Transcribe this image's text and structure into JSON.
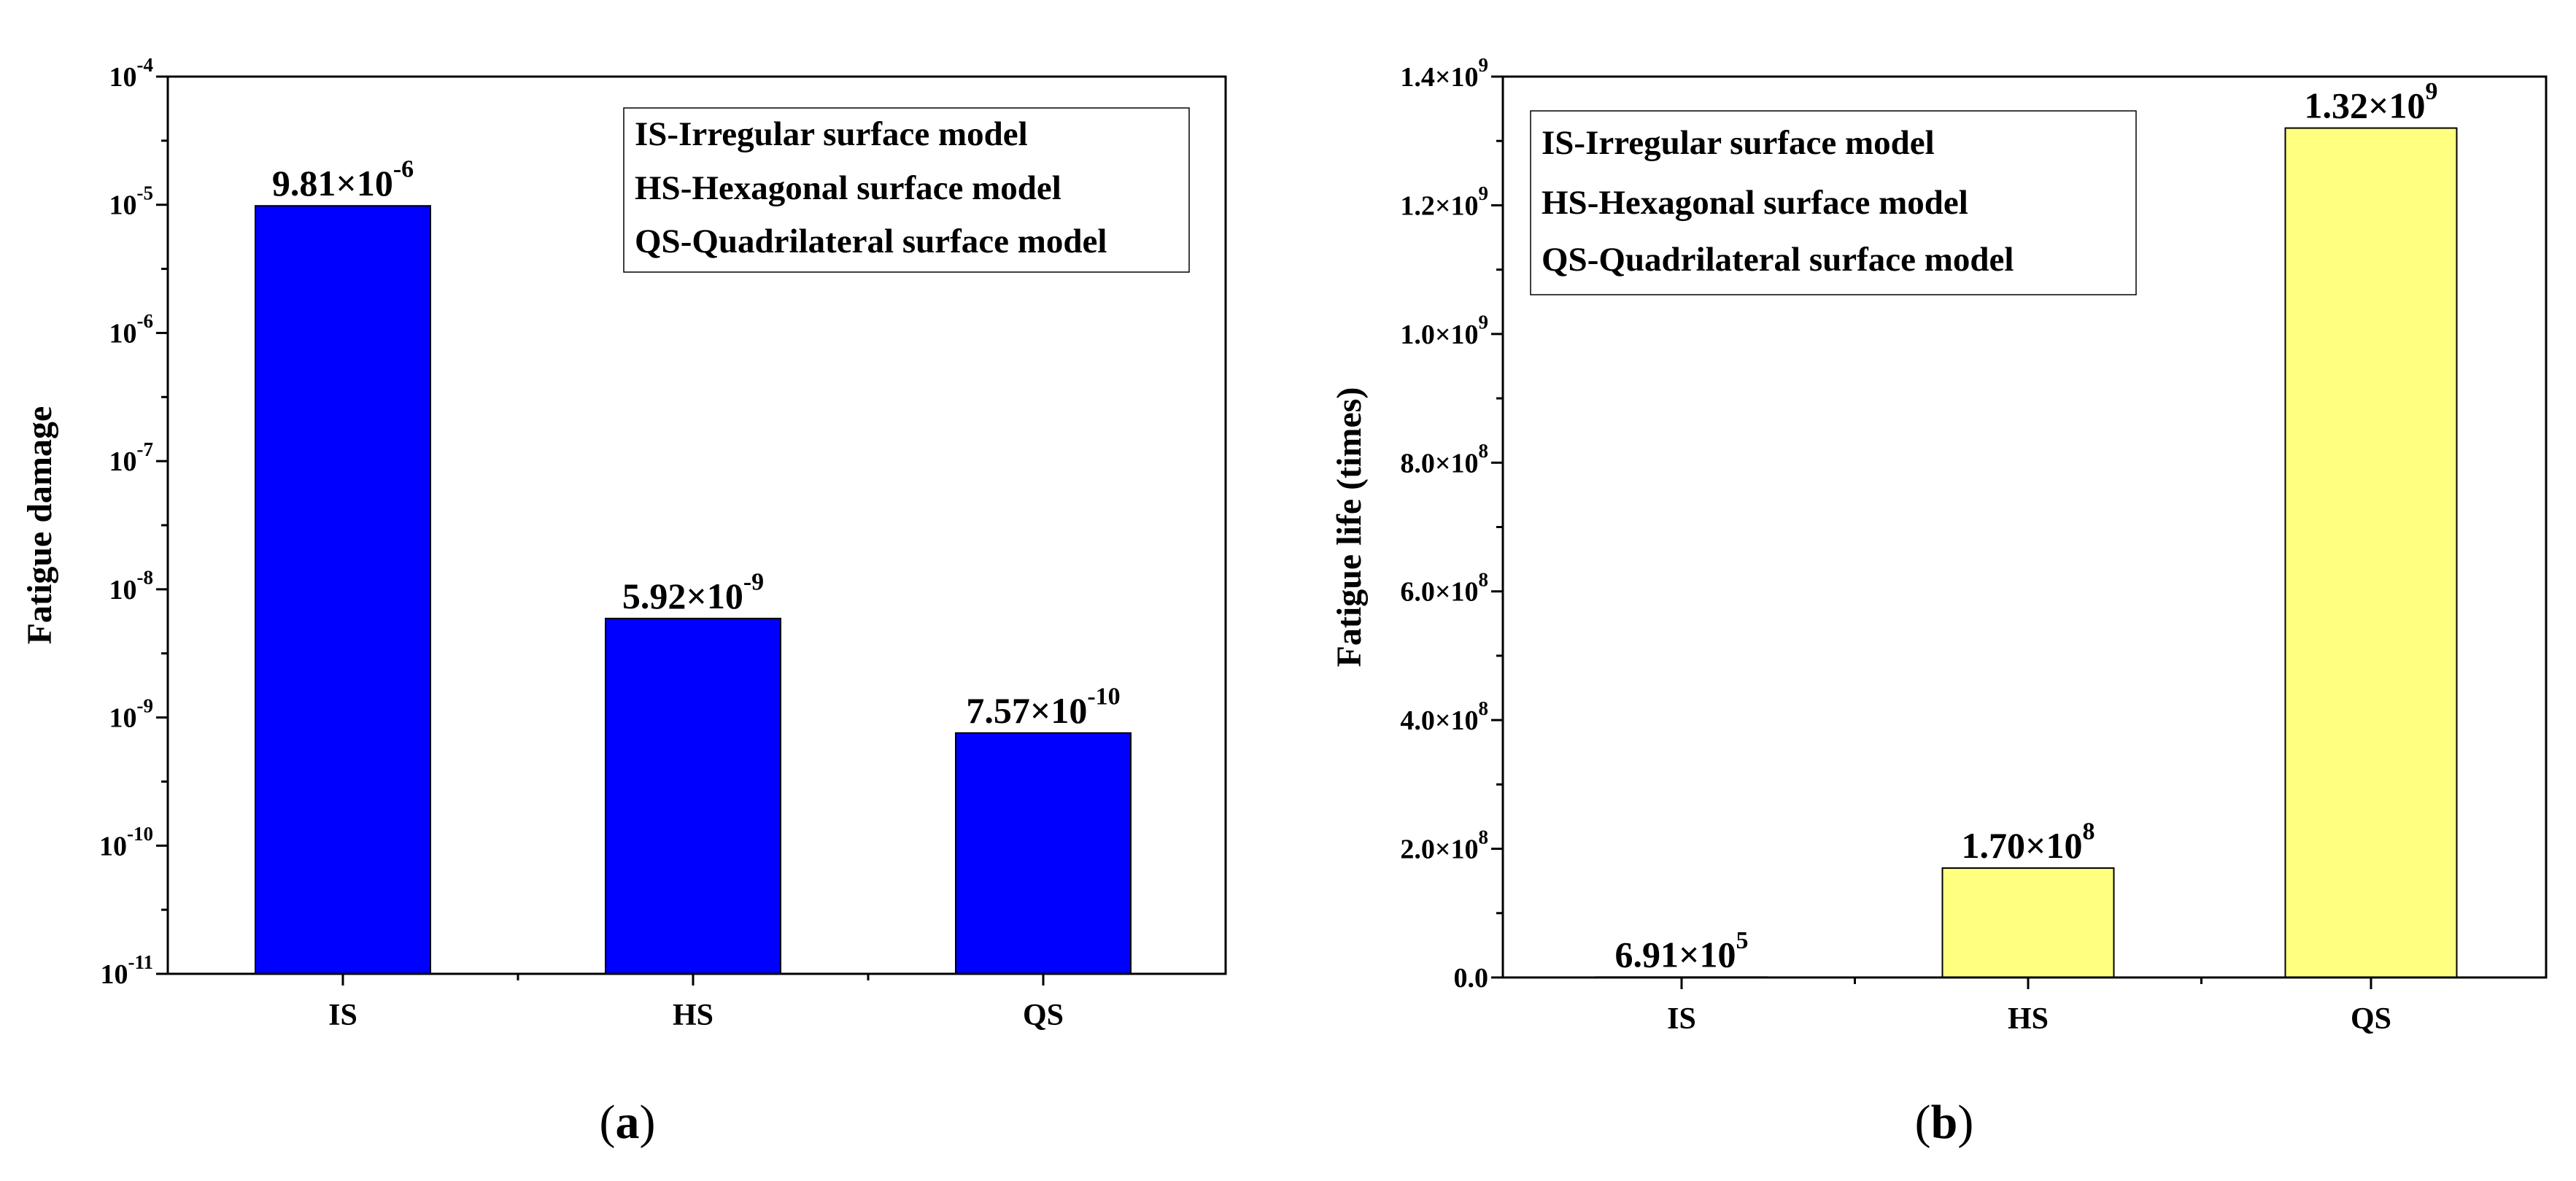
{
  "chart_data": [
    {
      "type": "bar",
      "panel_label": "a",
      "ylabel": "Fatigue damage",
      "yscale": "log",
      "ylim": [
        1e-11,
        0.0001
      ],
      "categories": [
        "IS",
        "HS",
        "QS"
      ],
      "values": [
        9.81e-06,
        5.92e-09,
        7.57e-10
      ],
      "data_labels": [
        {
          "mantissa": "9.81×10",
          "exponent": "-6"
        },
        {
          "mantissa": "5.92×10",
          "exponent": "-9"
        },
        {
          "mantissa": "7.57×10",
          "exponent": "-10"
        }
      ],
      "y_ticks": [
        {
          "value": 1e-11,
          "base": "10",
          "exp": "-11"
        },
        {
          "value": 1e-10,
          "base": "10",
          "exp": "-10"
        },
        {
          "value": 1e-09,
          "base": "10",
          "exp": "-9"
        },
        {
          "value": 1e-08,
          "base": "10",
          "exp": "-8"
        },
        {
          "value": 1e-07,
          "base": "10",
          "exp": "-7"
        },
        {
          "value": 1e-06,
          "base": "10",
          "exp": "-6"
        },
        {
          "value": 1e-05,
          "base": "10",
          "exp": "-5"
        },
        {
          "value": 0.0001,
          "base": "10",
          "exp": "-4"
        }
      ],
      "bar_color": "#0000ff",
      "legend": {
        "placement": "top-right",
        "entries": [
          "IS-Irregular surface model",
          "HS-Hexagonal surface model",
          "QS-Quadrilateral surface model"
        ]
      },
      "grid": false
    },
    {
      "type": "bar",
      "panel_label": "b",
      "ylabel": "Fatigue life (times)",
      "yscale": "linear",
      "ylim": [
        0,
        1400000000.0
      ],
      "categories": [
        "IS",
        "HS",
        "QS"
      ],
      "values": [
        691000.0,
        170000000.0,
        1320000000.0
      ],
      "data_labels": [
        {
          "mantissa": "6.91×10",
          "exponent": "5"
        },
        {
          "mantissa": "1.70×10",
          "exponent": "8"
        },
        {
          "mantissa": "1.32×10",
          "exponent": "9"
        }
      ],
      "y_ticks": [
        {
          "value": 0,
          "base": "0.0",
          "exp": ""
        },
        {
          "value": 200000000.0,
          "base": "2.0×10",
          "exp": "8"
        },
        {
          "value": 400000000.0,
          "base": "4.0×10",
          "exp": "8"
        },
        {
          "value": 600000000.0,
          "base": "6.0×10",
          "exp": "8"
        },
        {
          "value": 800000000.0,
          "base": "8.0×10",
          "exp": "8"
        },
        {
          "value": 1000000000.0,
          "base": "1.0×10",
          "exp": "9"
        },
        {
          "value": 1200000000.0,
          "base": "1.2×10",
          "exp": "9"
        },
        {
          "value": 1400000000.0,
          "base": "1.4×10",
          "exp": "9"
        }
      ],
      "bar_color": "#ffff80",
      "legend": {
        "placement": "top-left",
        "entries": [
          "IS-Irregular surface model",
          "HS-Hexagonal surface model",
          "QS-Quadrilateral surface model"
        ]
      },
      "grid": false
    }
  ]
}
